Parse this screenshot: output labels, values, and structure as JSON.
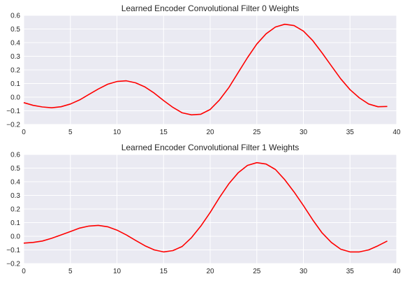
{
  "chart_data": [
    {
      "type": "line",
      "title": "Learned Encoder Convolutional Filter 0 Weights",
      "xlabel": "",
      "ylabel": "",
      "xlim": [
        0,
        40
      ],
      "ylim": [
        -0.2,
        0.6
      ],
      "xticks": [
        0,
        5,
        10,
        15,
        20,
        25,
        30,
        35,
        40
      ],
      "yticks": [
        -0.2,
        -0.1,
        0.0,
        0.1,
        0.2,
        0.3,
        0.4,
        0.5,
        0.6
      ],
      "xtick_labels": [
        "0",
        "5",
        "10",
        "15",
        "20",
        "25",
        "30",
        "35",
        "40"
      ],
      "ytick_labels": [
        "−0.2",
        "−0.1",
        "0.0",
        "0.1",
        "0.2",
        "0.3",
        "0.4",
        "0.5",
        "0.6"
      ],
      "grid": true,
      "background_color": "#eaeaf2",
      "line_color": "#ff0000",
      "series": [
        {
          "x": [
            0,
            1,
            2,
            3,
            4,
            5,
            6,
            7,
            8,
            9,
            10,
            11,
            12,
            13,
            14,
            15,
            16,
            17,
            18,
            19,
            20,
            21,
            22,
            23,
            24,
            25,
            26,
            27,
            28,
            29,
            30,
            31,
            32,
            33,
            34,
            35,
            36,
            37,
            38,
            39
          ],
          "values": [
            -0.04,
            -0.06,
            -0.072,
            -0.078,
            -0.07,
            -0.05,
            -0.02,
            0.02,
            0.06,
            0.095,
            0.115,
            0.12,
            0.105,
            0.075,
            0.03,
            -0.025,
            -0.075,
            -0.115,
            -0.13,
            -0.125,
            -0.09,
            -0.02,
            0.07,
            0.18,
            0.29,
            0.39,
            0.465,
            0.515,
            0.535,
            0.525,
            0.485,
            0.415,
            0.325,
            0.23,
            0.135,
            0.055,
            -0.005,
            -0.05,
            -0.07,
            -0.068
          ]
        }
      ]
    },
    {
      "type": "line",
      "title": "Learned Encoder Convolutional Filter 1 Weights",
      "xlabel": "",
      "ylabel": "",
      "xlim": [
        0,
        40
      ],
      "ylim": [
        -0.2,
        0.6
      ],
      "xticks": [
        0,
        5,
        10,
        15,
        20,
        25,
        30,
        35,
        40
      ],
      "yticks": [
        -0.2,
        -0.1,
        0.0,
        0.1,
        0.2,
        0.3,
        0.4,
        0.5,
        0.6
      ],
      "xtick_labels": [
        "0",
        "5",
        "10",
        "15",
        "20",
        "25",
        "30",
        "35",
        "40"
      ],
      "ytick_labels": [
        "−0.2",
        "−0.1",
        "0.0",
        "0.1",
        "0.2",
        "0.3",
        "0.4",
        "0.5",
        "0.6"
      ],
      "grid": true,
      "background_color": "#eaeaf2",
      "line_color": "#ff0000",
      "series": [
        {
          "x": [
            0,
            1,
            2,
            3,
            4,
            5,
            6,
            7,
            8,
            9,
            10,
            11,
            12,
            13,
            14,
            15,
            16,
            17,
            18,
            19,
            20,
            21,
            22,
            23,
            24,
            25,
            26,
            27,
            28,
            29,
            30,
            31,
            32,
            33,
            34,
            35,
            36,
            37,
            38,
            39
          ],
          "values": [
            -0.05,
            -0.045,
            -0.035,
            -0.015,
            0.01,
            0.035,
            0.06,
            0.075,
            0.08,
            0.07,
            0.045,
            0.01,
            -0.03,
            -0.07,
            -0.1,
            -0.115,
            -0.105,
            -0.075,
            -0.01,
            0.075,
            0.175,
            0.285,
            0.385,
            0.465,
            0.52,
            0.54,
            0.53,
            0.49,
            0.415,
            0.325,
            0.225,
            0.12,
            0.025,
            -0.045,
            -0.095,
            -0.115,
            -0.115,
            -0.1,
            -0.07,
            -0.035
          ]
        }
      ]
    }
  ]
}
